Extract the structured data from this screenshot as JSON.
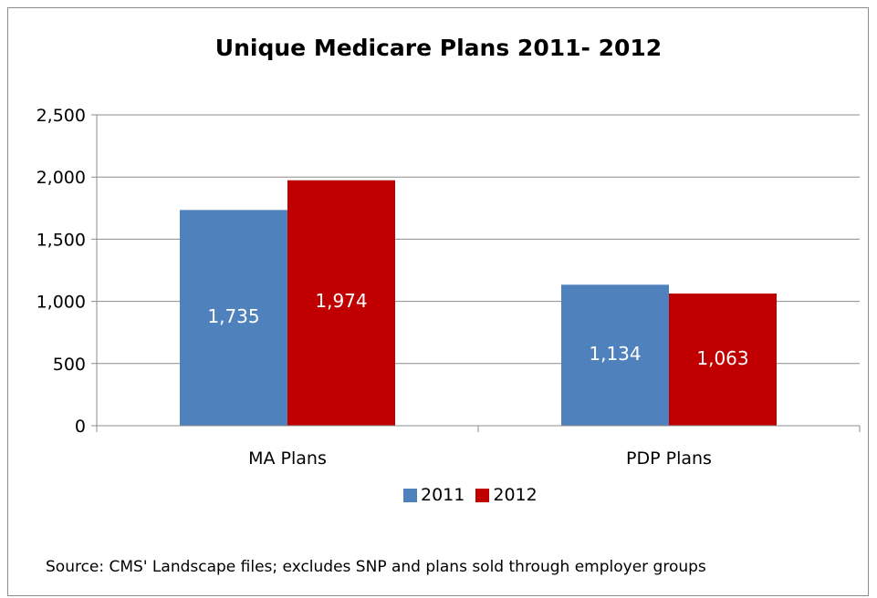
{
  "chart_data": {
    "type": "bar",
    "title": "Unique Medicare Plans 2011- 2012",
    "categories": [
      "MA Plans",
      "PDP Plans"
    ],
    "series": [
      {
        "name": "2011",
        "values": [
          1735,
          1134
        ],
        "labels": [
          "1,735",
          "1,134"
        ],
        "color": "#4f81bd"
      },
      {
        "name": "2012",
        "values": [
          1974,
          1063
        ],
        "labels": [
          "1,974",
          "1,063"
        ],
        "color": "#c00000"
      }
    ],
    "ylim": [
      0,
      2500
    ],
    "yticks": [
      0,
      500,
      1000,
      1500,
      2000,
      2500
    ],
    "ytick_labels": [
      "0",
      "500",
      "1,000",
      "1,500",
      "2,000",
      "2,500"
    ],
    "grid": true,
    "legend_position": "bottom",
    "xlabel": "",
    "ylabel": ""
  },
  "source_note": "Source: CMS' Landscape files; excludes SNP and plans sold through employer groups",
  "colors": {
    "gridline": "#8c8c8c",
    "axis": "#8c8c8c"
  }
}
